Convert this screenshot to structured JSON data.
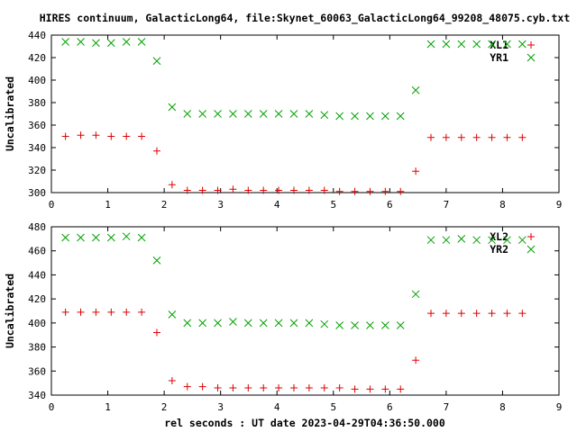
{
  "figure_title": "HIRES continuum, GalacticLong64, file:Skynet_60063_GalacticLong64_99208_48075.cyb.txt",
  "xlabel": "rel seconds : UT date 2023-04-29T04:36:50.000",
  "colors": {
    "red_series": "#dd0000",
    "green_series": "#00a000"
  },
  "chart_data": [
    {
      "type": "scatter",
      "title": "",
      "xlabel": "",
      "ylabel": "Uncalibrated",
      "xlim": [
        0,
        9
      ],
      "ylim": [
        300,
        440
      ],
      "xticks": [
        "0",
        "1",
        "2",
        "3",
        "4",
        "5",
        "6",
        "7",
        "8",
        "9"
      ],
      "yticks": [
        "300",
        "320",
        "340",
        "360",
        "380",
        "400",
        "420",
        "440"
      ],
      "grid": false,
      "legend_position": "top-right",
      "x": [
        0.25,
        0.52,
        0.79,
        1.06,
        1.33,
        1.6,
        1.87,
        2.14,
        2.41,
        2.68,
        2.95,
        3.22,
        3.49,
        3.76,
        4.03,
        4.3,
        4.57,
        4.84,
        5.11,
        5.38,
        5.65,
        5.92,
        6.19,
        6.46,
        6.73,
        7.0,
        7.27,
        7.54,
        7.81,
        8.08,
        8.35
      ],
      "series": [
        {
          "name": "XL1",
          "marker": "plus",
          "color": "#dd0000",
          "values": [
            350,
            351,
            351,
            350,
            350,
            350,
            337,
            307,
            302,
            302,
            302,
            303,
            302,
            302,
            302,
            302,
            302,
            302,
            301,
            301,
            301,
            301,
            301,
            319,
            349,
            349,
            349,
            349,
            349,
            349,
            349
          ]
        },
        {
          "name": "YR1",
          "marker": "cross",
          "color": "#00a000",
          "values": [
            434,
            434,
            433,
            433,
            434,
            434,
            417,
            376,
            370,
            370,
            370,
            370,
            370,
            370,
            370,
            370,
            370,
            369,
            368,
            368,
            368,
            368,
            368,
            391,
            432,
            432,
            432,
            432,
            432,
            432,
            432
          ]
        }
      ]
    },
    {
      "type": "scatter",
      "title": "",
      "xlabel": "",
      "ylabel": "Uncalibrated",
      "xlim": [
        0,
        9
      ],
      "ylim": [
        340,
        480
      ],
      "xticks": [
        "0",
        "1",
        "2",
        "3",
        "4",
        "5",
        "6",
        "7",
        "8",
        "9"
      ],
      "yticks": [
        "340",
        "360",
        "380",
        "400",
        "420",
        "440",
        "460",
        "480"
      ],
      "grid": false,
      "legend_position": "top-right",
      "x": [
        0.25,
        0.52,
        0.79,
        1.06,
        1.33,
        1.6,
        1.87,
        2.14,
        2.41,
        2.68,
        2.95,
        3.22,
        3.49,
        3.76,
        4.03,
        4.3,
        4.57,
        4.84,
        5.11,
        5.38,
        5.65,
        5.92,
        6.19,
        6.46,
        6.73,
        7.0,
        7.27,
        7.54,
        7.81,
        8.08,
        8.35
      ],
      "series": [
        {
          "name": "XL2",
          "marker": "plus",
          "color": "#dd0000",
          "values": [
            409,
            409,
            409,
            409,
            409,
            409,
            392,
            352,
            347,
            347,
            346,
            346,
            346,
            346,
            346,
            346,
            346,
            346,
            346,
            345,
            345,
            345,
            345,
            369,
            408,
            408,
            408,
            408,
            408,
            408,
            408
          ]
        },
        {
          "name": "YR2",
          "marker": "cross",
          "color": "#00a000",
          "values": [
            471,
            471,
            471,
            471,
            472,
            471,
            452,
            407,
            400,
            400,
            400,
            401,
            400,
            400,
            400,
            400,
            400,
            399,
            398,
            398,
            398,
            398,
            398,
            424,
            469,
            469,
            470,
            469,
            469,
            469,
            469
          ]
        }
      ]
    }
  ]
}
